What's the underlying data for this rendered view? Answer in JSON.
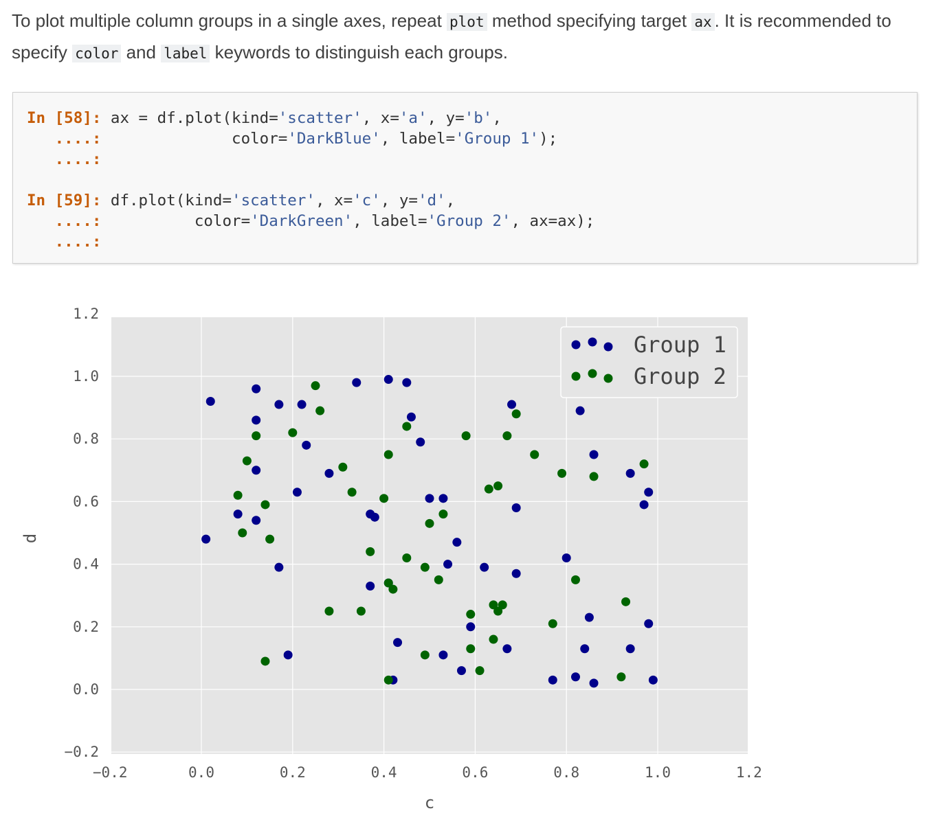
{
  "intro": {
    "t1": "To plot multiple column groups in a single axes, repeat ",
    "c1": "plot",
    "t2": " method specifying target ",
    "c2": "ax",
    "t3": ". It is recommended to specify ",
    "c3": "color",
    "t4": " and ",
    "c4": "label",
    "t5": " keywords to distinguish each groups."
  },
  "code": {
    "cell1": {
      "prompt": "In [58]:",
      "l1a": " ax = df.plot(kind=",
      "s1": "'scatter'",
      "l1b": ", x=",
      "s2": "'a'",
      "l1c": ", y=",
      "s3": "'b'",
      "l1d": ",",
      "cont": "....:",
      "l2a": "              color=",
      "s4": "'DarkBlue'",
      "l2b": ", label=",
      "s5": "'Group 1'",
      "l2c": ");"
    },
    "cell2": {
      "prompt": "In [59]:",
      "l1a": " df.plot(kind=",
      "s1": "'scatter'",
      "l1b": ", x=",
      "s2": "'c'",
      "l1c": ", y=",
      "s3": "'d'",
      "l1d": ",",
      "cont": "....:",
      "l2a": "          color=",
      "s4": "'DarkGreen'",
      "l2b": ", label=",
      "s5": "'Group 2'",
      "l2c": ", ax=ax);"
    }
  },
  "chart_data": {
    "type": "scatter",
    "xlabel": "c",
    "ylabel": "d",
    "xlim": [
      -0.2,
      1.2
    ],
    "ylim": [
      -0.2,
      1.2
    ],
    "xticks": [
      "−0.2",
      "0.0",
      "0.2",
      "0.4",
      "0.6",
      "0.8",
      "1.0",
      "1.2"
    ],
    "yticks": [
      "−0.2",
      "0.0",
      "0.2",
      "0.4",
      "0.6",
      "0.8",
      "1.0",
      "1.2"
    ],
    "grid": true,
    "legend_position": "top-right",
    "series": [
      {
        "name": "Group 1",
        "color": "#00008b",
        "points": [
          [
            0.02,
            0.92
          ],
          [
            0.12,
            0.96
          ],
          [
            0.12,
            0.86
          ],
          [
            0.17,
            0.91
          ],
          [
            0.22,
            0.91
          ],
          [
            0.23,
            0.78
          ],
          [
            0.12,
            0.7
          ],
          [
            0.21,
            0.63
          ],
          [
            0.08,
            0.56
          ],
          [
            0.12,
            0.54
          ],
          [
            0.01,
            0.48
          ],
          [
            0.17,
            0.39
          ],
          [
            0.19,
            0.11
          ],
          [
            0.34,
            0.98
          ],
          [
            0.41,
            0.99
          ],
          [
            0.45,
            0.98
          ],
          [
            0.46,
            0.87
          ],
          [
            0.48,
            0.79
          ],
          [
            0.28,
            0.69
          ],
          [
            0.37,
            0.56
          ],
          [
            0.38,
            0.55
          ],
          [
            0.5,
            0.61
          ],
          [
            0.53,
            0.61
          ],
          [
            0.56,
            0.47
          ],
          [
            0.54,
            0.4
          ],
          [
            0.37,
            0.33
          ],
          [
            0.41,
            0.34
          ],
          [
            0.43,
            0.15
          ],
          [
            0.42,
            0.03
          ],
          [
            0.53,
            0.11
          ],
          [
            0.57,
            0.06
          ],
          [
            0.59,
            0.2
          ],
          [
            0.62,
            0.39
          ],
          [
            0.67,
            0.13
          ],
          [
            0.68,
            0.91
          ],
          [
            0.69,
            0.58
          ],
          [
            0.69,
            0.37
          ],
          [
            0.77,
            0.03
          ],
          [
            0.8,
            0.42
          ],
          [
            0.82,
            0.04
          ],
          [
            0.83,
            0.89
          ],
          [
            0.85,
            0.23
          ],
          [
            0.84,
            0.13
          ],
          [
            0.86,
            0.75
          ],
          [
            0.86,
            0.02
          ],
          [
            0.94,
            0.69
          ],
          [
            0.94,
            0.13
          ],
          [
            0.98,
            0.63
          ],
          [
            0.97,
            0.59
          ],
          [
            0.98,
            0.21
          ],
          [
            0.99,
            0.03
          ]
        ]
      },
      {
        "name": "Group 2",
        "color": "#006400",
        "points": [
          [
            0.25,
            0.97
          ],
          [
            0.26,
            0.89
          ],
          [
            0.12,
            0.81
          ],
          [
            0.2,
            0.82
          ],
          [
            0.1,
            0.73
          ],
          [
            0.08,
            0.62
          ],
          [
            0.14,
            0.59
          ],
          [
            0.09,
            0.5
          ],
          [
            0.15,
            0.48
          ],
          [
            0.14,
            0.09
          ],
          [
            0.31,
            0.71
          ],
          [
            0.33,
            0.63
          ],
          [
            0.28,
            0.25
          ],
          [
            0.35,
            0.25
          ],
          [
            0.37,
            0.44
          ],
          [
            0.4,
            0.61
          ],
          [
            0.41,
            0.75
          ],
          [
            0.45,
            0.84
          ],
          [
            0.41,
            0.34
          ],
          [
            0.42,
            0.32
          ],
          [
            0.41,
            0.03
          ],
          [
            0.45,
            0.42
          ],
          [
            0.49,
            0.39
          ],
          [
            0.5,
            0.53
          ],
          [
            0.53,
            0.56
          ],
          [
            0.52,
            0.35
          ],
          [
            0.49,
            0.11
          ],
          [
            0.58,
            0.81
          ],
          [
            0.59,
            0.24
          ],
          [
            0.59,
            0.13
          ],
          [
            0.61,
            0.06
          ],
          [
            0.63,
            0.64
          ],
          [
            0.65,
            0.65
          ],
          [
            0.64,
            0.27
          ],
          [
            0.65,
            0.25
          ],
          [
            0.66,
            0.27
          ],
          [
            0.64,
            0.16
          ],
          [
            0.67,
            0.81
          ],
          [
            0.69,
            0.88
          ],
          [
            0.73,
            0.75
          ],
          [
            0.77,
            0.21
          ],
          [
            0.79,
            0.69
          ],
          [
            0.82,
            0.35
          ],
          [
            0.86,
            0.68
          ],
          [
            0.92,
            0.04
          ],
          [
            0.93,
            0.28
          ],
          [
            0.97,
            0.72
          ]
        ]
      }
    ]
  }
}
